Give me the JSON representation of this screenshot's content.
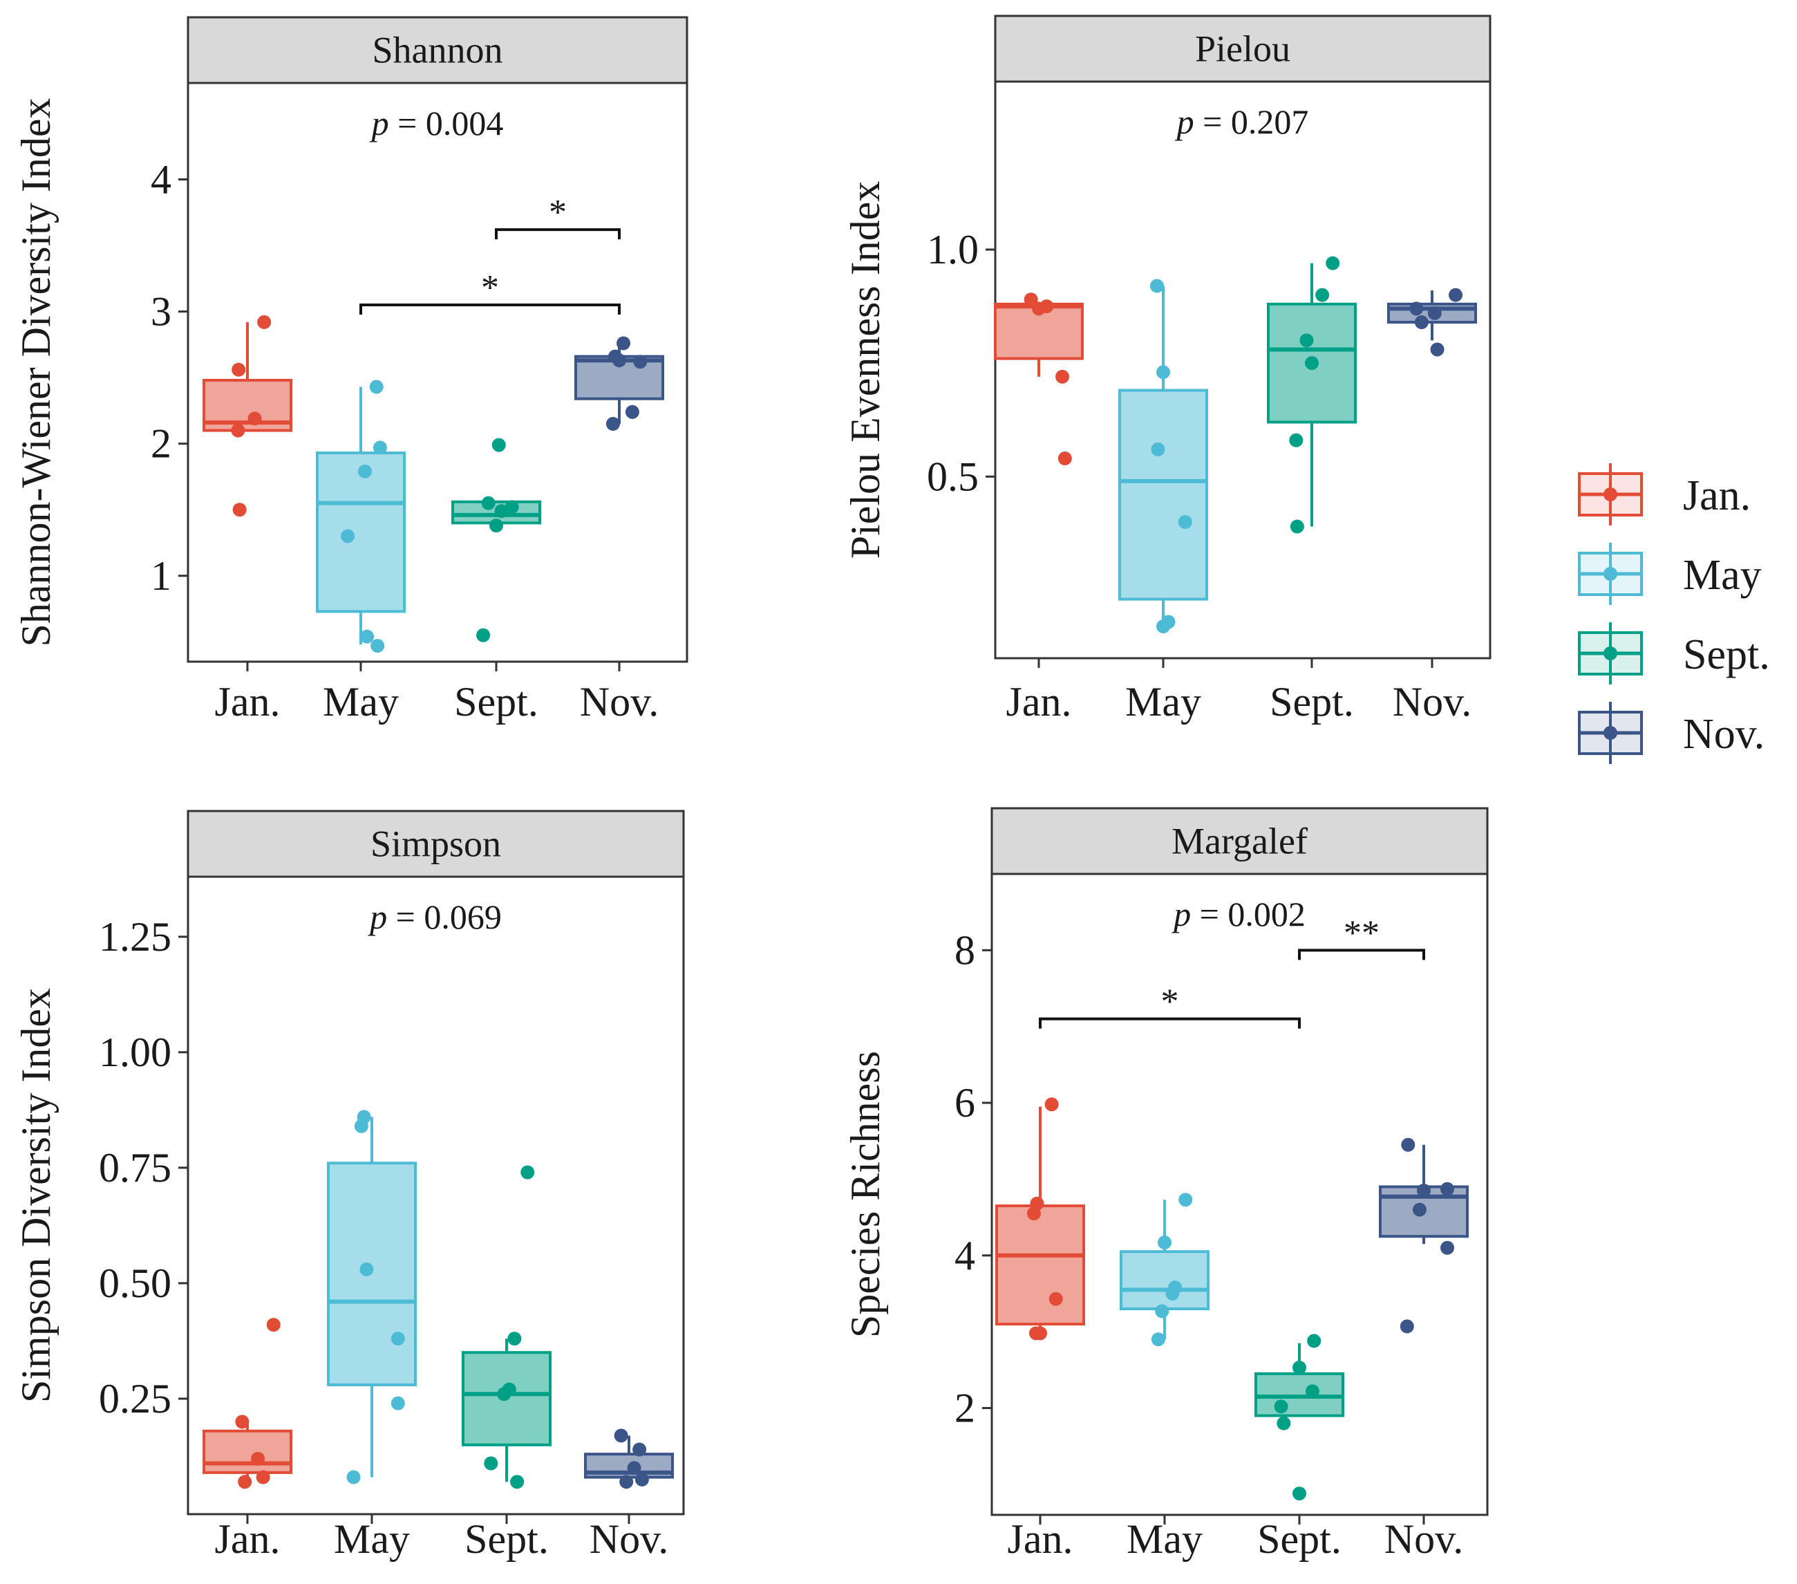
{
  "chart_data": [
    {
      "id": "shannon",
      "type": "box",
      "title": "Shannon",
      "ylabel": "Shannon-Wiener Diversity Index",
      "xlabel": "",
      "categories": [
        "Jan.",
        "May",
        "Sept.",
        "Nov."
      ],
      "ylim": [
        0.35,
        4.73
      ],
      "yticks": [
        1,
        2,
        3,
        4
      ],
      "ytick_labels": [
        "1",
        "2",
        "3",
        "4"
      ],
      "p_prefix": "p",
      "p_value": " = 0.004",
      "boxes": [
        {
          "q1": 2.1,
          "median": 2.16,
          "q3": 2.48,
          "whisker_low": 2.1,
          "whisker_high": 2.92,
          "points": [
            1.5,
            2.1,
            2.19,
            2.56,
            2.92
          ],
          "jitter": [
            -0.15,
            -0.18,
            0.14,
            -0.17,
            0.32
          ]
        },
        {
          "q1": 0.73,
          "median": 1.55,
          "q3": 1.93,
          "whisker_low": 0.48,
          "whisker_high": 2.43,
          "points": [
            0.47,
            0.54,
            1.3,
            1.79,
            1.97,
            2.43
          ],
          "jitter": [
            0.32,
            0.12,
            -0.25,
            0.08,
            0.37,
            0.3
          ]
        },
        {
          "q1": 1.4,
          "median": 1.46,
          "q3": 1.56,
          "whisker_low": 1.4,
          "whisker_high": 1.56,
          "points": [
            0.55,
            1.38,
            1.49,
            1.52,
            1.55,
            1.99
          ],
          "jitter": [
            -0.25,
            0.0,
            0.1,
            0.3,
            -0.15,
            0.05
          ]
        },
        {
          "q1": 2.34,
          "median": 2.63,
          "q3": 2.66,
          "whisker_low": 2.15,
          "whisker_high": 2.76,
          "points": [
            2.15,
            2.24,
            2.62,
            2.63,
            2.66,
            2.76
          ],
          "jitter": [
            -0.12,
            0.25,
            0.4,
            0.0,
            -0.08,
            0.08
          ]
        }
      ],
      "significance": [
        {
          "from": 3,
          "to": 4,
          "y": 3.62,
          "label": "*"
        },
        {
          "from": 2,
          "to": 4,
          "y": 3.05,
          "label": "*"
        }
      ]
    },
    {
      "id": "pielou",
      "type": "box",
      "title": "Pielou",
      "ylabel": "Pielou Evenness Index",
      "xlabel": "",
      "categories": [
        "Jan.",
        "May",
        "Sept.",
        "Nov."
      ],
      "ylim": [
        0.1,
        1.37
      ],
      "yticks": [
        0.5,
        1.0
      ],
      "ytick_labels": [
        "0.5",
        "1.0"
      ],
      "p_prefix": "p",
      "p_value": " = 0.207",
      "boxes": [
        {
          "q1": 0.76,
          "median": 0.875,
          "q3": 0.88,
          "whisker_low": 0.72,
          "whisker_high": 0.88,
          "points": [
            0.54,
            0.72,
            0.87,
            0.875,
            0.89
          ],
          "jitter": [
            0.5,
            0.45,
            0.0,
            0.15,
            -0.15
          ]
        },
        {
          "q1": 0.23,
          "median": 0.49,
          "q3": 0.69,
          "whisker_low": 0.17,
          "whisker_high": 0.92,
          "points": [
            0.17,
            0.18,
            0.4,
            0.56,
            0.73,
            0.92
          ],
          "jitter": [
            0.0,
            0.1,
            0.42,
            -0.1,
            0.0,
            -0.12
          ]
        },
        {
          "q1": 0.62,
          "median": 0.78,
          "q3": 0.88,
          "whisker_low": 0.39,
          "whisker_high": 0.97,
          "points": [
            0.39,
            0.58,
            0.75,
            0.8,
            0.9,
            0.97
          ],
          "jitter": [
            -0.28,
            -0.3,
            0.0,
            -0.1,
            0.2,
            0.4
          ]
        },
        {
          "q1": 0.84,
          "median": 0.87,
          "q3": 0.88,
          "whisker_low": 0.8,
          "whisker_high": 0.91,
          "points": [
            0.78,
            0.84,
            0.86,
            0.87,
            0.9
          ],
          "jitter": [
            0.1,
            -0.2,
            0.05,
            -0.3,
            0.45
          ]
        }
      ],
      "significance": []
    },
    {
      "id": "simpson",
      "type": "box",
      "title": "Simpson",
      "ylabel": "Simpson Diversity Index",
      "xlabel": "",
      "categories": [
        "Jan.",
        "May",
        "Sept.",
        "Nov."
      ],
      "ylim": [
        0.0,
        1.38
      ],
      "yticks": [
        0.25,
        0.5,
        0.75,
        1.0,
        1.25
      ],
      "ytick_labels": [
        "0.25",
        "0.50",
        "0.75",
        "1.00",
        "1.25"
      ],
      "p_prefix": "p",
      "p_value": " = 0.069",
      "boxes": [
        {
          "q1": 0.09,
          "median": 0.11,
          "q3": 0.18,
          "whisker_low": 0.07,
          "whisker_high": 0.2,
          "points": [
            0.07,
            0.08,
            0.12,
            0.2,
            0.41
          ],
          "jitter": [
            -0.05,
            0.3,
            0.2,
            -0.1,
            0.5
          ]
        },
        {
          "q1": 0.28,
          "median": 0.46,
          "q3": 0.76,
          "whisker_low": 0.08,
          "whisker_high": 0.86,
          "points": [
            0.08,
            0.24,
            0.38,
            0.53,
            0.84,
            0.86
          ],
          "jitter": [
            -0.35,
            0.5,
            0.5,
            -0.1,
            -0.2,
            -0.15
          ]
        },
        {
          "q1": 0.15,
          "median": 0.26,
          "q3": 0.35,
          "whisker_low": 0.07,
          "whisker_high": 0.38,
          "points": [
            0.07,
            0.11,
            0.26,
            0.27,
            0.38,
            0.74
          ],
          "jitter": [
            0.2,
            -0.3,
            -0.05,
            0.05,
            0.15,
            0.4
          ]
        },
        {
          "q1": 0.08,
          "median": 0.09,
          "q3": 0.13,
          "whisker_low": 0.07,
          "whisker_high": 0.17,
          "points": [
            0.07,
            0.075,
            0.1,
            0.14,
            0.17
          ],
          "jitter": [
            -0.05,
            0.25,
            0.1,
            0.2,
            -0.15
          ]
        }
      ],
      "significance": []
    },
    {
      "id": "margalef",
      "type": "box",
      "title": "Margalef",
      "ylabel": "Species Richness",
      "xlabel": "",
      "categories": [
        "Jan.",
        "May",
        "Sept.",
        "Nov."
      ],
      "ylim": [
        0.6,
        9.0
      ],
      "yticks": [
        2,
        4,
        6,
        8
      ],
      "ytick_labels": [
        "2",
        "4",
        "6",
        "8"
      ],
      "p_prefix": "p",
      "p_value": " = 0.002",
      "boxes": [
        {
          "q1": 3.1,
          "median": 4.0,
          "q3": 4.65,
          "whisker_low": 3.05,
          "whisker_high": 5.95,
          "points": [
            2.98,
            2.98,
            3.43,
            4.55,
            4.68,
            5.98
          ],
          "jitter": [
            -0.08,
            0.0,
            0.3,
            -0.12,
            -0.06,
            0.22
          ]
        },
        {
          "q1": 3.3,
          "median": 3.55,
          "q3": 4.05,
          "whisker_low": 2.9,
          "whisker_high": 4.73,
          "points": [
            2.9,
            3.27,
            3.5,
            3.58,
            4.17,
            4.73
          ],
          "jitter": [
            -0.12,
            -0.05,
            0.15,
            0.2,
            0.0,
            0.4
          ]
        },
        {
          "q1": 1.9,
          "median": 2.15,
          "q3": 2.45,
          "whisker_low": 1.9,
          "whisker_high": 2.85,
          "points": [
            0.88,
            1.8,
            2.02,
            2.22,
            2.53,
            2.88
          ],
          "jitter": [
            0.0,
            -0.3,
            -0.35,
            0.25,
            0.0,
            0.28
          ]
        },
        {
          "q1": 4.25,
          "median": 4.77,
          "q3": 4.9,
          "whisker_low": 4.15,
          "whisker_high": 5.45,
          "points": [
            3.07,
            4.1,
            4.6,
            4.85,
            4.87,
            5.45
          ],
          "jitter": [
            -0.32,
            0.45,
            -0.08,
            0.0,
            0.45,
            -0.3
          ]
        }
      ],
      "significance": [
        {
          "from": 3,
          "to": 4,
          "y": 8.0,
          "label": "**"
        },
        {
          "from": 1,
          "to": 3,
          "y": 7.1,
          "label": "*"
        }
      ]
    }
  ],
  "legend": {
    "items": [
      {
        "label": "Jan.",
        "color": "#E24B35"
      },
      {
        "label": "May",
        "color": "#4DBBD6"
      },
      {
        "label": "Sept.",
        "color": "#00A087"
      },
      {
        "label": "Nov.",
        "color": "#3C5589"
      }
    ]
  }
}
